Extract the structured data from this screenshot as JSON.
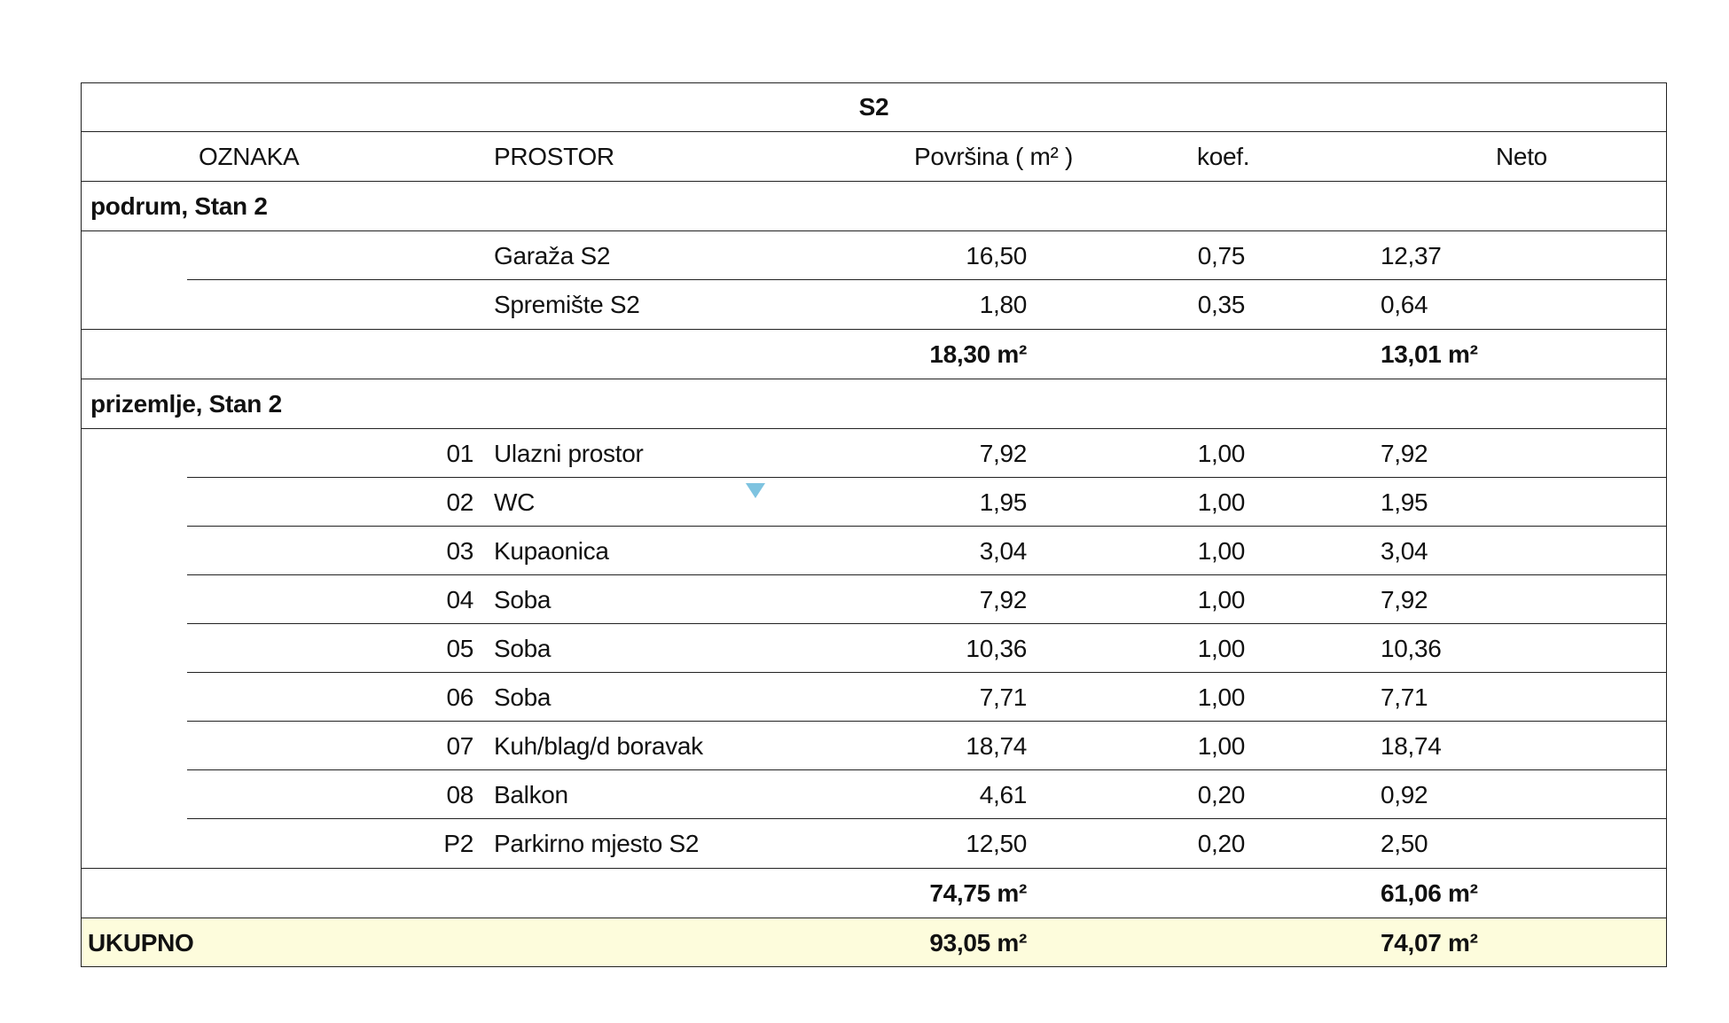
{
  "title": "S2",
  "headers": {
    "oznaka": "OZNAKA",
    "prostor": "PROSTOR",
    "povrsina": "Površina ( m² )",
    "koef": "koef.",
    "neto": "Neto"
  },
  "groups": [
    {
      "label": "podrum, Stan 2",
      "rows": [
        {
          "oznaka": "",
          "prostor": "Garaža S2",
          "povrsina": "16,50",
          "koef": "0,75",
          "neto": "12,37"
        },
        {
          "oznaka": "",
          "prostor": "Spremište S2",
          "povrsina": "1,80",
          "koef": "0,35",
          "neto": "0,64"
        }
      ],
      "subtotal": {
        "povrsina": "18,30 m²",
        "neto": "13,01 m²"
      }
    },
    {
      "label": "prizemlje, Stan 2",
      "rows": [
        {
          "oznaka": "01",
          "prostor": "Ulazni prostor",
          "povrsina": "7,92",
          "koef": "1,00",
          "neto": "7,92"
        },
        {
          "oznaka": "02",
          "prostor": "WC",
          "povrsina": "1,95",
          "koef": "1,00",
          "neto": "1,95"
        },
        {
          "oznaka": "03",
          "prostor": "Kupaonica",
          "povrsina": "3,04",
          "koef": "1,00",
          "neto": "3,04"
        },
        {
          "oznaka": "04",
          "prostor": "Soba",
          "povrsina": "7,92",
          "koef": "1,00",
          "neto": "7,92"
        },
        {
          "oznaka": "05",
          "prostor": "Soba",
          "povrsina": "10,36",
          "koef": "1,00",
          "neto": "10,36"
        },
        {
          "oznaka": "06",
          "prostor": "Soba",
          "povrsina": "7,71",
          "koef": "1,00",
          "neto": "7,71"
        },
        {
          "oznaka": "07",
          "prostor": "Kuh/blag/d boravak",
          "povrsina": "18,74",
          "koef": "1,00",
          "neto": "18,74"
        },
        {
          "oznaka": "08",
          "prostor": "Balkon",
          "povrsina": "4,61",
          "koef": "0,20",
          "neto": "0,92"
        },
        {
          "oznaka": "P2",
          "prostor": "Parkirno mjesto S2",
          "povrsina": "12,50",
          "koef": "0,20",
          "neto": "2,50"
        }
      ],
      "subtotal": {
        "povrsina": "74,75 m²",
        "neto": "61,06 m²"
      }
    }
  ],
  "total": {
    "label": "UKUPNO",
    "povrsina": "93,05 m²",
    "neto": "74,07 m²"
  },
  "colors": {
    "total_row_bg": "#fdfcdc",
    "border": "#222222",
    "marker": "#7ec3e0"
  }
}
